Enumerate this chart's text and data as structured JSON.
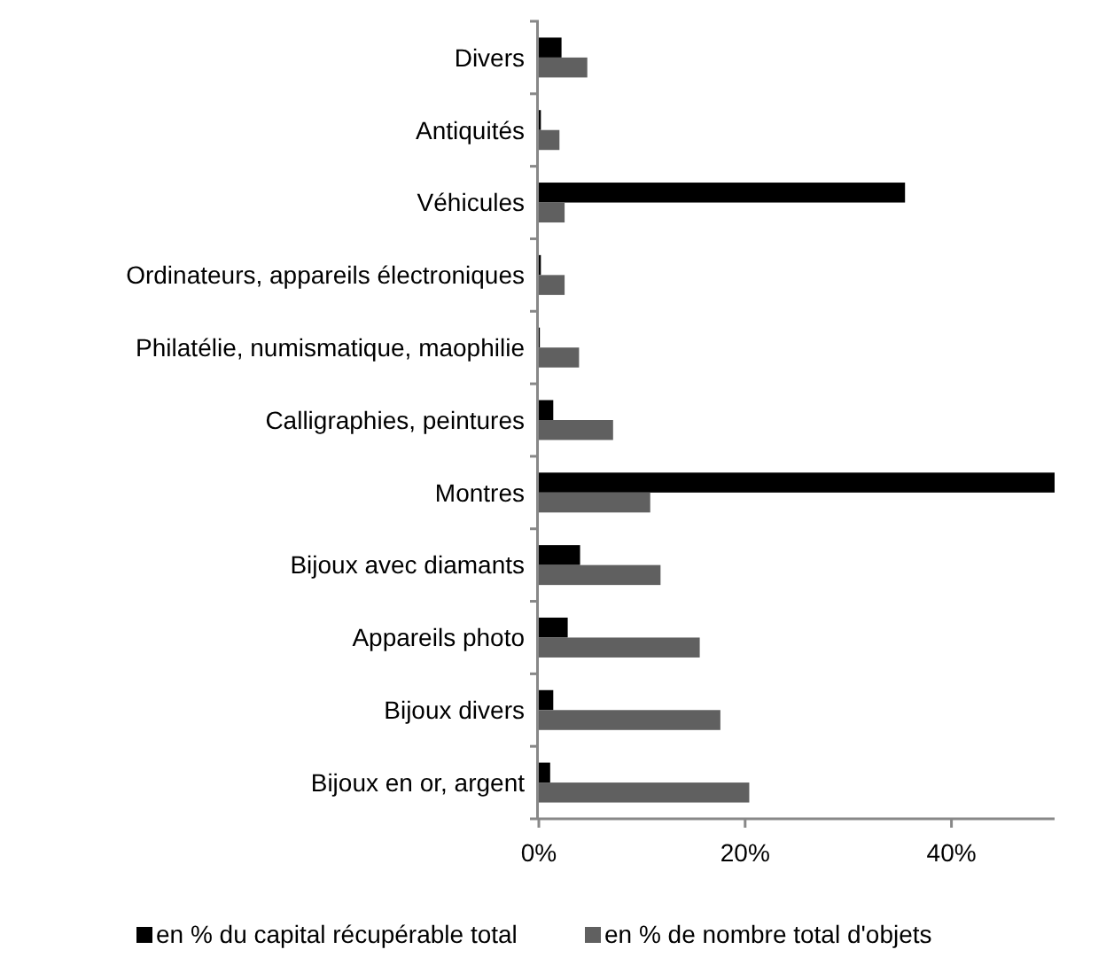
{
  "chart_data": {
    "type": "bar",
    "orientation": "horizontal",
    "categories": [
      "Divers",
      "Antiquités",
      "Véhicules",
      "Ordinateurs, appareils électroniques",
      "Philatélie, numismatique, maophilie",
      "Calligraphies, peintures",
      "Montres",
      "Bijoux avec diamants",
      "Appareils photo",
      "Bijoux divers",
      "Bijoux en or, argent"
    ],
    "series": [
      {
        "name": "en % du capital récupérable total",
        "color": "#000000",
        "values": [
          2.2,
          0.2,
          35.5,
          0.2,
          0.1,
          1.4,
          50,
          4.0,
          2.8,
          1.4,
          1.1
        ]
      },
      {
        "name": "en % de nombre total d'objets",
        "color": "#606060",
        "values": [
          4.7,
          2.0,
          2.5,
          2.5,
          3.9,
          7.2,
          10.8,
          11.8,
          15.6,
          17.6,
          20.4
        ]
      }
    ],
    "xlim": [
      0,
      50
    ],
    "xticks": [
      {
        "value": 0,
        "label": "0%"
      },
      {
        "value": 20,
        "label": "20%"
      },
      {
        "value": 40,
        "label": "40%"
      }
    ],
    "grid": false,
    "legend": "bottom"
  }
}
